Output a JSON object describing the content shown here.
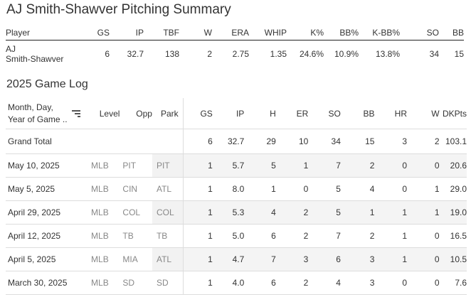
{
  "summary": {
    "title": "AJ Smith-Shawver Pitching Summary",
    "headers": [
      "Player",
      "GS",
      "IP",
      "TBF",
      "W",
      "ERA",
      "WHIP",
      "K%",
      "BB%",
      "K-BB%",
      "SO",
      "BB"
    ],
    "row": {
      "player_line1": "AJ",
      "player_line2": "Smith-Shawver",
      "values": [
        "6",
        "32.7",
        "138",
        "2",
        "2.75",
        "1.35",
        "24.6%",
        "10.9%",
        "13.8%",
        "34",
        "15"
      ]
    }
  },
  "game_log": {
    "title": "2025 Game Log",
    "date_header_line1": "Month, Day,",
    "date_header_line2": "Year of Game ..",
    "sort_icon": "sort-descending-icon",
    "headers": [
      "Level",
      "Opp",
      "Park",
      "GS",
      "IP",
      "H",
      "ER",
      "SO",
      "BB",
      "HR",
      "W",
      "DKPts"
    ],
    "total": {
      "label": "Grand Total",
      "values": [
        "6",
        "32.7",
        "29",
        "10",
        "34",
        "15",
        "3",
        "2",
        "103.1"
      ]
    },
    "rows": [
      {
        "date": "May 10, 2025",
        "level": "MLB",
        "opp": "PIT",
        "park": "PIT",
        "stats": [
          "1",
          "5.7",
          "5",
          "1",
          "7",
          "2",
          "0",
          "0",
          "20.6"
        ]
      },
      {
        "date": "May 5, 2025",
        "level": "MLB",
        "opp": "CIN",
        "park": "ATL",
        "stats": [
          "1",
          "8.0",
          "1",
          "0",
          "5",
          "4",
          "0",
          "1",
          "29.0"
        ]
      },
      {
        "date": "April 29, 2025",
        "level": "MLB",
        "opp": "COL",
        "park": "COL",
        "stats": [
          "1",
          "5.3",
          "4",
          "2",
          "5",
          "1",
          "1",
          "1",
          "19.0"
        ]
      },
      {
        "date": "April 12, 2025",
        "level": "MLB",
        "opp": "TB",
        "park": "TB",
        "stats": [
          "1",
          "5.0",
          "6",
          "2",
          "7",
          "2",
          "1",
          "0",
          "16.5"
        ]
      },
      {
        "date": "April 5, 2025",
        "level": "MLB",
        "opp": "MIA",
        "park": "ATL",
        "stats": [
          "1",
          "4.7",
          "7",
          "3",
          "6",
          "3",
          "1",
          "0",
          "10.5"
        ]
      },
      {
        "date": "March 30, 2025",
        "level": "MLB",
        "opp": "SD",
        "park": "SD",
        "stats": [
          "1",
          "4.0",
          "6",
          "2",
          "4",
          "3",
          "0",
          "0",
          "7.6"
        ]
      }
    ]
  }
}
